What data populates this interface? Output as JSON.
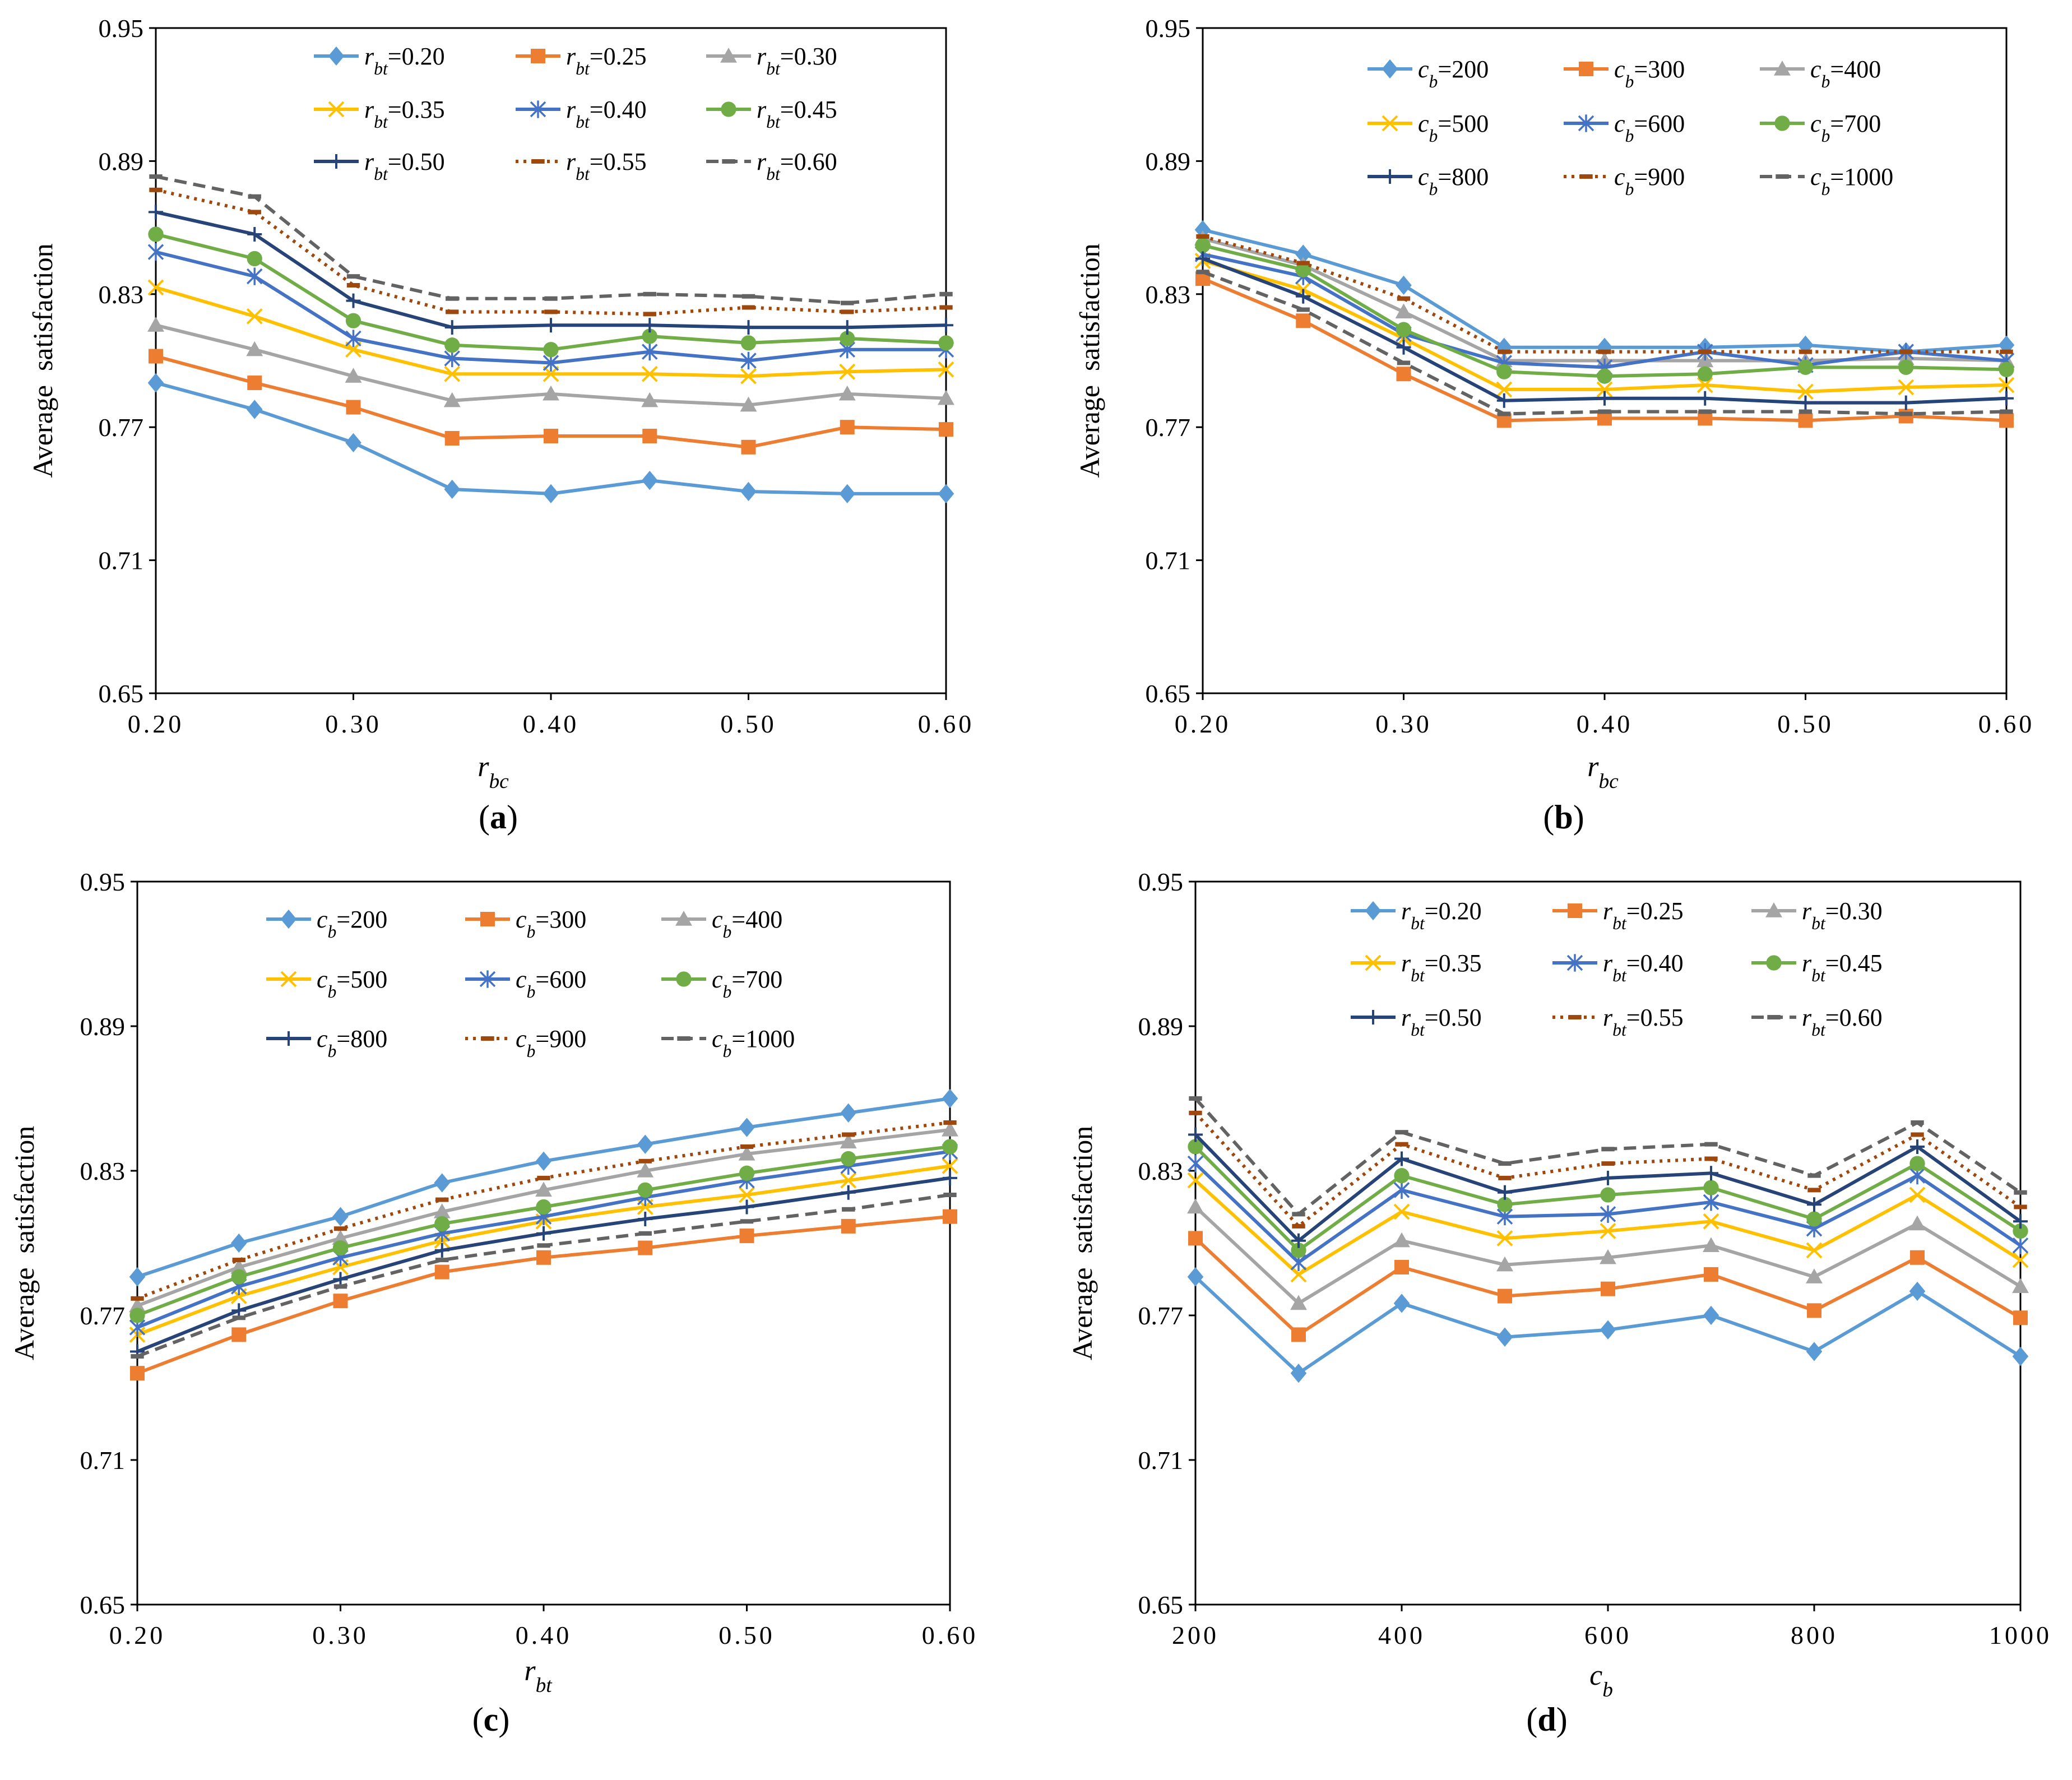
{
  "figure": {
    "panels": [
      "a",
      "b",
      "c",
      "d"
    ]
  },
  "styles": {
    "rbt": [
      {
        "color": "#5B9BD5",
        "marker": "diamond",
        "dash": "solid"
      },
      {
        "color": "#ED7D31",
        "marker": "square",
        "dash": "solid"
      },
      {
        "color": "#A5A5A5",
        "marker": "triangle",
        "dash": "solid"
      },
      {
        "color": "#FFC000",
        "marker": "x",
        "dash": "solid"
      },
      {
        "color": "#4472C4",
        "marker": "asterisk",
        "dash": "solid"
      },
      {
        "color": "#70AD47",
        "marker": "circle",
        "dash": "solid"
      },
      {
        "color": "#264478",
        "marker": "plus",
        "dash": "solid"
      },
      {
        "color": "#9E480E",
        "marker": "dash",
        "dash": "dot"
      },
      {
        "color": "#636363",
        "marker": "dash",
        "dash": "dash"
      }
    ]
  },
  "chart_data": [
    {
      "id": "a",
      "type": "line",
      "panel_label": "(a)",
      "panel_letter": "a",
      "ylabel": "Average  satisfaction",
      "xlabel": "r",
      "xlabel_sub": "bc",
      "xlim": [
        0.2,
        0.6
      ],
      "ylim": [
        0.65,
        0.95
      ],
      "xticks": [
        "0.20",
        "0.30",
        "0.40",
        "0.50",
        "0.60"
      ],
      "xtick_values": [
        0.2,
        0.3,
        0.4,
        0.5,
        0.6
      ],
      "yticks": [
        "0.65",
        "0.71",
        "0.77",
        "0.83",
        "0.89",
        "0.95"
      ],
      "ytick_values": [
        0.65,
        0.71,
        0.77,
        0.83,
        0.89,
        0.95
      ],
      "legend_position": "top-right",
      "x": [
        0.2,
        0.25,
        0.3,
        0.35,
        0.4,
        0.45,
        0.5,
        0.55,
        0.6
      ],
      "series": [
        {
          "name_var": "r",
          "name_sub": "bt",
          "name_val": "=0.20",
          "values": [
            0.79,
            0.778,
            0.763,
            0.742,
            0.74,
            0.746,
            0.741,
            0.74,
            0.74
          ]
        },
        {
          "name_var": "r",
          "name_sub": "bt",
          "name_val": "=0.25",
          "values": [
            0.802,
            0.79,
            0.779,
            0.765,
            0.766,
            0.766,
            0.761,
            0.77,
            0.769
          ]
        },
        {
          "name_var": "r",
          "name_sub": "bt",
          "name_val": "=0.30",
          "values": [
            0.816,
            0.805,
            0.793,
            0.782,
            0.785,
            0.782,
            0.78,
            0.785,
            0.783
          ]
        },
        {
          "name_var": "r",
          "name_sub": "bt",
          "name_val": "=0.35",
          "values": [
            0.833,
            0.82,
            0.805,
            0.794,
            0.794,
            0.794,
            0.793,
            0.795,
            0.796
          ]
        },
        {
          "name_var": "r",
          "name_sub": "bt",
          "name_val": "=0.40",
          "values": [
            0.849,
            0.838,
            0.81,
            0.801,
            0.799,
            0.804,
            0.8,
            0.805,
            0.805
          ]
        },
        {
          "name_var": "r",
          "name_sub": "bt",
          "name_val": "=0.45",
          "values": [
            0.857,
            0.846,
            0.818,
            0.807,
            0.805,
            0.811,
            0.808,
            0.81,
            0.808
          ]
        },
        {
          "name_var": "r",
          "name_sub": "bt",
          "name_val": "=0.50",
          "values": [
            0.867,
            0.857,
            0.827,
            0.815,
            0.816,
            0.816,
            0.815,
            0.815,
            0.816
          ]
        },
        {
          "name_var": "r",
          "name_sub": "bt",
          "name_val": "=0.55",
          "values": [
            0.877,
            0.867,
            0.834,
            0.822,
            0.822,
            0.821,
            0.824,
            0.822,
            0.824
          ]
        },
        {
          "name_var": "r",
          "name_sub": "bt",
          "name_val": "=0.60",
          "values": [
            0.883,
            0.874,
            0.838,
            0.828,
            0.828,
            0.83,
            0.829,
            0.826,
            0.83
          ]
        }
      ]
    },
    {
      "id": "b",
      "type": "line",
      "panel_label": "(b)",
      "panel_letter": "b",
      "ylabel": "Average  satisfaction",
      "xlabel": "r",
      "xlabel_sub": "bc",
      "xlim": [
        0.2,
        0.6
      ],
      "ylim": [
        0.65,
        0.95
      ],
      "xticks": [
        "0.20",
        "0.30",
        "0.40",
        "0.50",
        "0.60"
      ],
      "xtick_values": [
        0.2,
        0.3,
        0.4,
        0.5,
        0.6
      ],
      "yticks": [
        "0.65",
        "0.71",
        "0.77",
        "0.83",
        "0.89",
        "0.95"
      ],
      "ytick_values": [
        0.65,
        0.71,
        0.77,
        0.83,
        0.89,
        0.95
      ],
      "legend_position": "top-right",
      "x": [
        0.2,
        0.25,
        0.3,
        0.35,
        0.4,
        0.45,
        0.5,
        0.55,
        0.6
      ],
      "series": [
        {
          "name_var": "c",
          "name_sub": "b",
          "name_val": "=200",
          "values": [
            0.859,
            0.848,
            0.834,
            0.806,
            0.806,
            0.806,
            0.807,
            0.804,
            0.807
          ]
        },
        {
          "name_var": "c",
          "name_sub": "b",
          "name_val": "=300",
          "values": [
            0.837,
            0.818,
            0.794,
            0.773,
            0.774,
            0.774,
            0.773,
            0.775,
            0.773
          ]
        },
        {
          "name_var": "c",
          "name_sub": "b",
          "name_val": "=400",
          "values": [
            0.855,
            0.843,
            0.822,
            0.8,
            0.8,
            0.8,
            0.8,
            0.801,
            0.8
          ]
        },
        {
          "name_var": "c",
          "name_sub": "b",
          "name_val": "=500",
          "values": [
            0.845,
            0.832,
            0.81,
            0.787,
            0.787,
            0.789,
            0.786,
            0.788,
            0.789
          ]
        },
        {
          "name_var": "c",
          "name_sub": "b",
          "name_val": "=600",
          "values": [
            0.848,
            0.838,
            0.812,
            0.799,
            0.797,
            0.804,
            0.798,
            0.804,
            0.8
          ]
        },
        {
          "name_var": "c",
          "name_sub": "b",
          "name_val": "=700",
          "values": [
            0.852,
            0.841,
            0.814,
            0.795,
            0.793,
            0.794,
            0.797,
            0.797,
            0.796
          ]
        },
        {
          "name_var": "c",
          "name_sub": "b",
          "name_val": "=800",
          "values": [
            0.846,
            0.829,
            0.806,
            0.782,
            0.783,
            0.783,
            0.781,
            0.781,
            0.783
          ]
        },
        {
          "name_var": "c",
          "name_sub": "b",
          "name_val": "=900",
          "values": [
            0.856,
            0.844,
            0.828,
            0.804,
            0.804,
            0.804,
            0.804,
            0.804,
            0.804
          ]
        },
        {
          "name_var": "c",
          "name_sub": "b",
          "name_val": "=1000",
          "values": [
            0.84,
            0.823,
            0.799,
            0.776,
            0.777,
            0.777,
            0.777,
            0.776,
            0.777
          ]
        }
      ]
    },
    {
      "id": "c",
      "type": "line",
      "panel_label": "(c)",
      "panel_letter": "c",
      "ylabel": "Average  satisfaction",
      "xlabel": "r",
      "xlabel_sub": "bt",
      "xlim": [
        0.2,
        0.6
      ],
      "ylim": [
        0.65,
        0.95
      ],
      "xticks": [
        "0.20",
        "0.30",
        "0.40",
        "0.50",
        "0.60"
      ],
      "xtick_values": [
        0.2,
        0.3,
        0.4,
        0.5,
        0.6
      ],
      "yticks": [
        "0.65",
        "0.71",
        "0.77",
        "0.83",
        "0.89",
        "0.95"
      ],
      "ytick_values": [
        0.65,
        0.71,
        0.77,
        0.83,
        0.89,
        0.95
      ],
      "legend_position": "top-right",
      "x": [
        0.2,
        0.25,
        0.3,
        0.35,
        0.4,
        0.45,
        0.5,
        0.55,
        0.6
      ],
      "series": [
        {
          "name_var": "c",
          "name_sub": "b",
          "name_val": "=200",
          "values": [
            0.786,
            0.8,
            0.811,
            0.825,
            0.834,
            0.841,
            0.848,
            0.854,
            0.86
          ]
        },
        {
          "name_var": "c",
          "name_sub": "b",
          "name_val": "=300",
          "values": [
            0.746,
            0.762,
            0.776,
            0.788,
            0.794,
            0.798,
            0.803,
            0.807,
            0.811
          ]
        },
        {
          "name_var": "c",
          "name_sub": "b",
          "name_val": "=400",
          "values": [
            0.774,
            0.79,
            0.802,
            0.813,
            0.822,
            0.83,
            0.837,
            0.842,
            0.847
          ]
        },
        {
          "name_var": "c",
          "name_sub": "b",
          "name_val": "=500",
          "values": [
            0.762,
            0.778,
            0.79,
            0.801,
            0.809,
            0.815,
            0.82,
            0.826,
            0.832
          ]
        },
        {
          "name_var": "c",
          "name_sub": "b",
          "name_val": "=600",
          "values": [
            0.765,
            0.782,
            0.794,
            0.804,
            0.811,
            0.819,
            0.826,
            0.832,
            0.838
          ]
        },
        {
          "name_var": "c",
          "name_sub": "b",
          "name_val": "=700",
          "values": [
            0.77,
            0.786,
            0.798,
            0.808,
            0.815,
            0.822,
            0.829,
            0.835,
            0.84
          ]
        },
        {
          "name_var": "c",
          "name_sub": "b",
          "name_val": "=800",
          "values": [
            0.755,
            0.772,
            0.785,
            0.797,
            0.804,
            0.81,
            0.815,
            0.821,
            0.827
          ]
        },
        {
          "name_var": "c",
          "name_sub": "b",
          "name_val": "=900",
          "values": [
            0.777,
            0.793,
            0.806,
            0.818,
            0.827,
            0.834,
            0.84,
            0.845,
            0.85
          ]
        },
        {
          "name_var": "c",
          "name_sub": "b",
          "name_val": "=1000",
          "values": [
            0.753,
            0.769,
            0.782,
            0.793,
            0.799,
            0.804,
            0.809,
            0.814,
            0.82
          ]
        }
      ]
    },
    {
      "id": "d",
      "type": "line",
      "panel_label": "(d)",
      "panel_letter": "d",
      "ylabel": "Average  satisfaction",
      "xlabel": "c",
      "xlabel_sub": "b",
      "xlim": [
        200,
        1000
      ],
      "ylim": [
        0.65,
        0.95
      ],
      "xticks": [
        "200",
        "400",
        "600",
        "800",
        "1000"
      ],
      "xtick_values": [
        200,
        400,
        600,
        800,
        1000
      ],
      "yticks": [
        "0.65",
        "0.71",
        "0.77",
        "0.83",
        "0.89",
        "0.95"
      ],
      "ytick_values": [
        0.65,
        0.71,
        0.77,
        0.83,
        0.89,
        0.95
      ],
      "legend_position": "top-right",
      "x": [
        200,
        300,
        400,
        500,
        600,
        700,
        800,
        900,
        1000
      ],
      "series": [
        {
          "name_var": "r",
          "name_sub": "bt",
          "name_val": "=0.20",
          "values": [
            0.786,
            0.746,
            0.775,
            0.761,
            0.764,
            0.77,
            0.755,
            0.78,
            0.753
          ]
        },
        {
          "name_var": "r",
          "name_sub": "bt",
          "name_val": "=0.25",
          "values": [
            0.802,
            0.762,
            0.79,
            0.778,
            0.781,
            0.787,
            0.772,
            0.794,
            0.769
          ]
        },
        {
          "name_var": "r",
          "name_sub": "bt",
          "name_val": "=0.30",
          "values": [
            0.815,
            0.775,
            0.801,
            0.791,
            0.794,
            0.799,
            0.786,
            0.808,
            0.782
          ]
        },
        {
          "name_var": "r",
          "name_sub": "bt",
          "name_val": "=0.35",
          "values": [
            0.826,
            0.787,
            0.813,
            0.802,
            0.805,
            0.809,
            0.797,
            0.82,
            0.793
          ]
        },
        {
          "name_var": "r",
          "name_sub": "bt",
          "name_val": "=0.40",
          "values": [
            0.833,
            0.792,
            0.822,
            0.811,
            0.812,
            0.817,
            0.806,
            0.828,
            0.799
          ]
        },
        {
          "name_var": "r",
          "name_sub": "bt",
          "name_val": "=0.45",
          "values": [
            0.84,
            0.797,
            0.828,
            0.816,
            0.82,
            0.823,
            0.81,
            0.833,
            0.805
          ]
        },
        {
          "name_var": "r",
          "name_sub": "bt",
          "name_val": "=0.50",
          "values": [
            0.845,
            0.801,
            0.835,
            0.821,
            0.827,
            0.829,
            0.816,
            0.84,
            0.809
          ]
        },
        {
          "name_var": "r",
          "name_sub": "bt",
          "name_val": "=0.55",
          "values": [
            0.854,
            0.807,
            0.841,
            0.827,
            0.833,
            0.835,
            0.822,
            0.845,
            0.815
          ]
        },
        {
          "name_var": "r",
          "name_sub": "bt",
          "name_val": "=0.60",
          "values": [
            0.86,
            0.812,
            0.846,
            0.833,
            0.839,
            0.841,
            0.828,
            0.85,
            0.821
          ]
        }
      ]
    }
  ]
}
